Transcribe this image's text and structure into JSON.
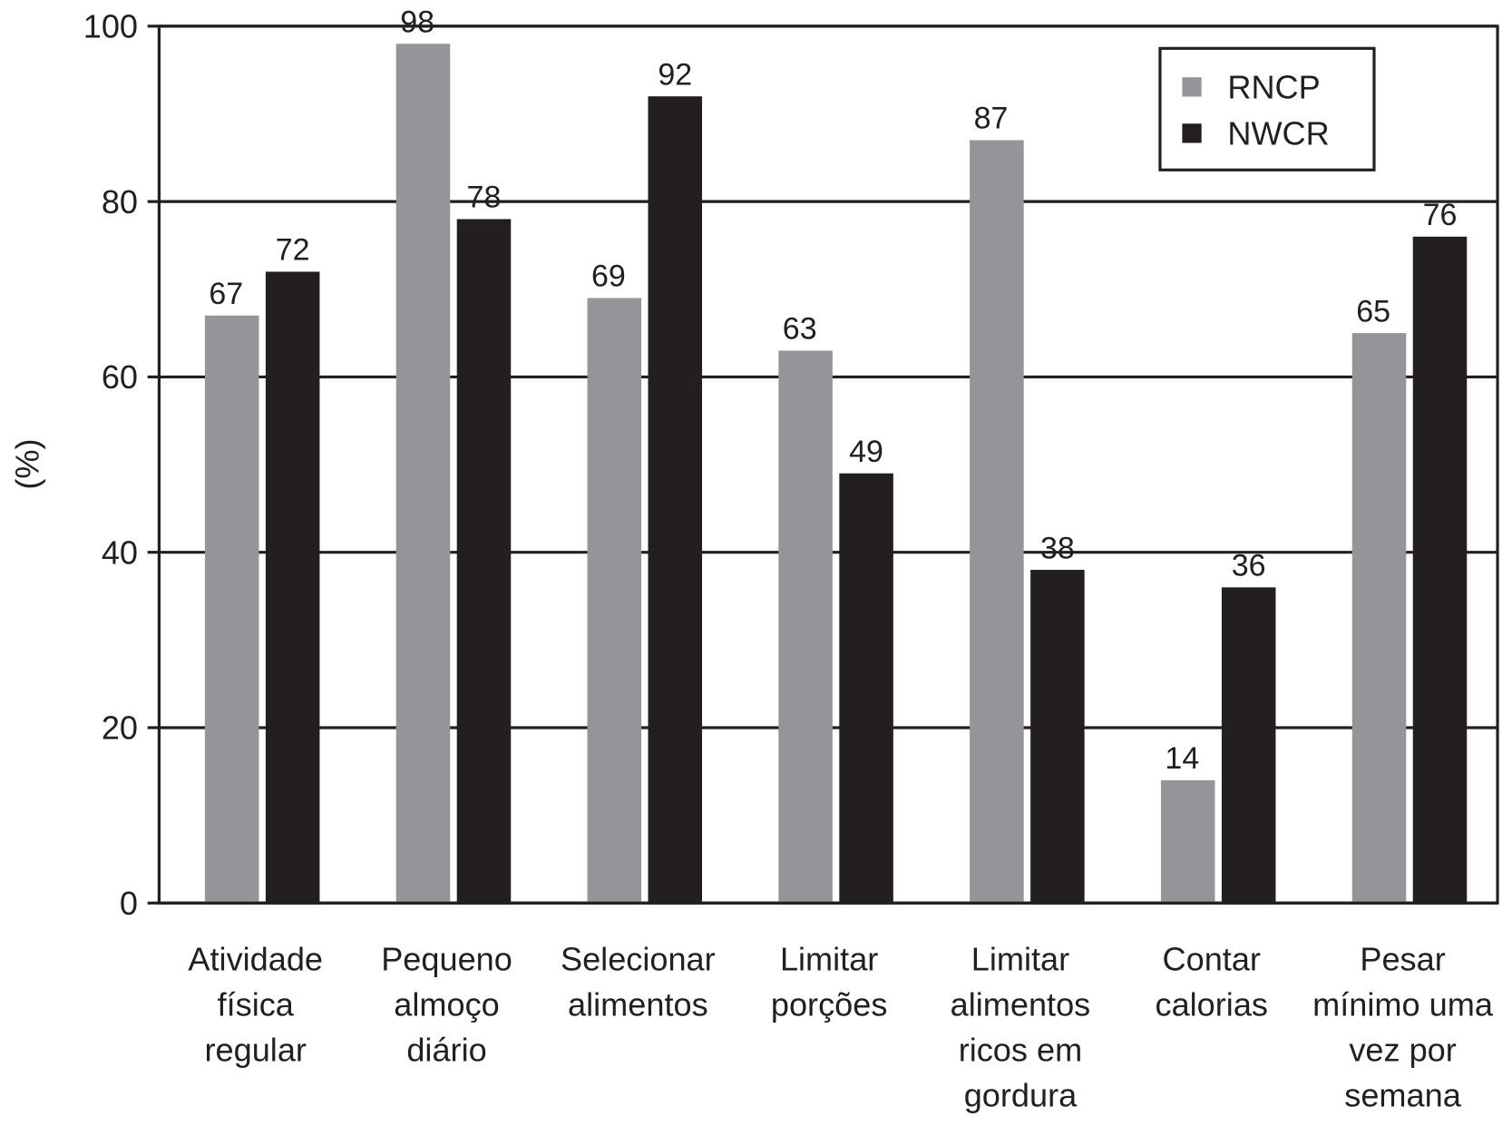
{
  "chart_data": {
    "type": "bar",
    "title": "",
    "xlabel": "",
    "ylabel": "(%)",
    "ylim": [
      0,
      100
    ],
    "yticks": [
      "0",
      "20",
      "40",
      "60",
      "80",
      "100"
    ],
    "grid": true,
    "legend_position": "top-right",
    "categories": [
      [
        "Atividade",
        "física",
        "regular"
      ],
      [
        "Pequeno",
        "almoço",
        "diário"
      ],
      [
        "Selecionar",
        "alimentos"
      ],
      [
        "Limitar",
        "porções"
      ],
      [
        "Limitar",
        "alimentos",
        "ricos em",
        "gordura"
      ],
      [
        "Contar",
        "calorias"
      ],
      [
        "Pesar",
        "mínimo uma",
        "vez por",
        "semana"
      ]
    ],
    "series": [
      {
        "name": "RNCP",
        "color": "#939598",
        "values": [
          67,
          98,
          69,
          63,
          87,
          14,
          65
        ]
      },
      {
        "name": "NWCR",
        "color": "#231f20",
        "values": [
          72,
          78,
          92,
          49,
          38,
          36,
          76
        ]
      }
    ]
  }
}
